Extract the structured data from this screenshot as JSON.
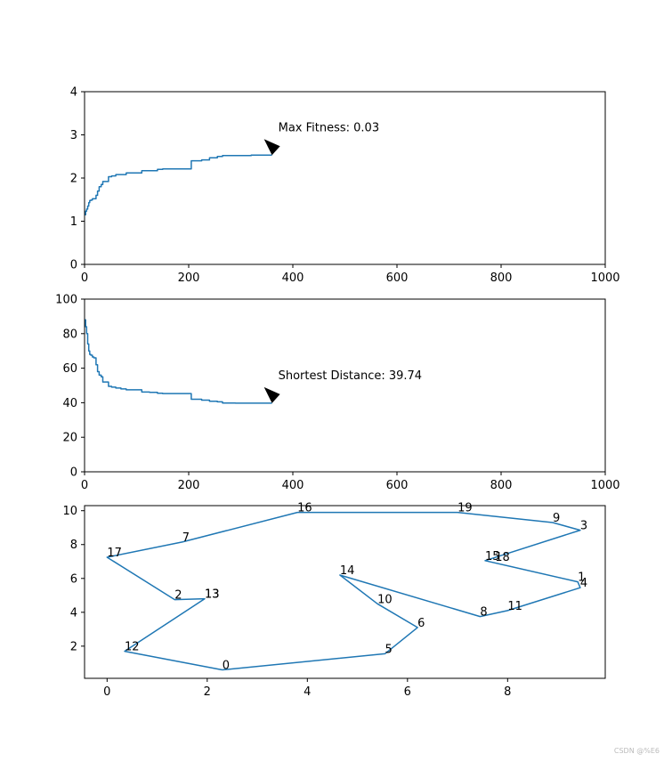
{
  "chart_data": [
    {
      "type": "line",
      "xlim": [
        0,
        1000
      ],
      "ylim": [
        0,
        4
      ],
      "xticks": [
        0,
        200,
        400,
        600,
        800,
        1000
      ],
      "yticks": [
        0,
        1,
        2,
        3,
        4
      ],
      "grid": false,
      "series": [
        {
          "color": "#1f77b4",
          "x": [
            0,
            2,
            4,
            6,
            8,
            10,
            12,
            15,
            18,
            22,
            25,
            28,
            32,
            35,
            40,
            46,
            52,
            60,
            70,
            80,
            95,
            110,
            125,
            140,
            150,
            175,
            205,
            225,
            240,
            255,
            265,
            290,
            320,
            360
          ],
          "y": [
            1.15,
            1.23,
            1.28,
            1.35,
            1.43,
            1.48,
            1.49,
            1.52,
            1.52,
            1.6,
            1.7,
            1.8,
            1.85,
            1.92,
            1.92,
            2.03,
            2.05,
            2.08,
            2.08,
            2.12,
            2.12,
            2.17,
            2.17,
            2.2,
            2.21,
            2.21,
            2.4,
            2.42,
            2.47,
            2.5,
            2.52,
            2.52,
            2.53,
            2.53
          ]
        }
      ],
      "annotation": {
        "text": "Max Fitness: 0.03",
        "x": 360,
        "y": 2.53
      }
    },
    {
      "type": "line",
      "xlim": [
        0,
        1000
      ],
      "ylim": [
        0,
        100
      ],
      "xticks": [
        0,
        200,
        400,
        600,
        800,
        1000
      ],
      "yticks": [
        0,
        20,
        40,
        60,
        80,
        100
      ],
      "grid": false,
      "series": [
        {
          "color": "#1f77b4",
          "x": [
            0,
            2,
            4,
            6,
            8,
            10,
            12,
            15,
            18,
            22,
            25,
            28,
            32,
            35,
            40,
            46,
            52,
            60,
            70,
            80,
            95,
            110,
            125,
            140,
            150,
            175,
            205,
            225,
            240,
            255,
            265,
            290,
            320,
            360
          ],
          "y": [
            88,
            84,
            80,
            74,
            70,
            68,
            67.5,
            66.5,
            66,
            62,
            58,
            56,
            55,
            52,
            52,
            49.5,
            49,
            48.5,
            48,
            47.5,
            47.5,
            46.2,
            46,
            45.5,
            45.3,
            45.3,
            42,
            41.5,
            40.8,
            40.5,
            39.8,
            39.74,
            39.74,
            39.74
          ]
        }
      ],
      "annotation": {
        "text": "Shortest Distance: 39.74",
        "x": 360,
        "y": 39.74
      }
    },
    {
      "type": "line",
      "xlim": [
        -0.45,
        9.95
      ],
      "ylim": [
        0.1,
        10.3
      ],
      "xticks": [
        0,
        2,
        4,
        6,
        8
      ],
      "yticks": [
        2,
        4,
        6,
        8,
        10
      ],
      "grid": false,
      "series": [
        {
          "color": "#1f77b4",
          "x": [
            2.3,
            0.35,
            1.95,
            1.35,
            0.0,
            1.5,
            3.8,
            7.0,
            8.9,
            9.45,
            7.55,
            9.4,
            9.45,
            8.0,
            7.45,
            4.65,
            5.4,
            6.2,
            5.55,
            2.3
          ],
          "y": [
            0.6,
            1.7,
            4.8,
            4.75,
            7.25,
            8.15,
            9.9,
            9.9,
            9.3,
            8.85,
            7.05,
            5.8,
            5.45,
            4.1,
            3.75,
            6.2,
            4.5,
            3.1,
            1.55,
            0.6
          ],
          "labels": [
            "0",
            "12",
            "13",
            "2",
            "17",
            "7",
            "16",
            "19",
            "9",
            "3",
            "15",
            "1",
            "4",
            "11",
            "8",
            "14",
            "10",
            "6",
            "5",
            "0"
          ]
        }
      ],
      "point_labels": [
        {
          "text": "0",
          "x": 2.3,
          "y": 0.6
        },
        {
          "text": "1",
          "x": 9.4,
          "y": 5.8
        },
        {
          "text": "2",
          "x": 1.35,
          "y": 4.75
        },
        {
          "text": "3",
          "x": 9.45,
          "y": 8.85
        },
        {
          "text": "4",
          "x": 9.45,
          "y": 5.45
        },
        {
          "text": "5",
          "x": 5.55,
          "y": 1.55
        },
        {
          "text": "6",
          "x": 6.2,
          "y": 3.1
        },
        {
          "text": "7",
          "x": 1.5,
          "y": 8.15
        },
        {
          "text": "8",
          "x": 7.45,
          "y": 3.75
        },
        {
          "text": "9",
          "x": 8.9,
          "y": 9.3
        },
        {
          "text": "10",
          "x": 5.4,
          "y": 4.5
        },
        {
          "text": "11",
          "x": 8.0,
          "y": 4.1
        },
        {
          "text": "12",
          "x": 0.35,
          "y": 1.7
        },
        {
          "text": "13",
          "x": 1.95,
          "y": 4.8
        },
        {
          "text": "13",
          "x": 1.95,
          "y": 4.8
        },
        {
          "text": "14",
          "x": 4.65,
          "y": 6.2
        },
        {
          "text": "15",
          "x": 7.55,
          "y": 7.05
        },
        {
          "text": "16",
          "x": 3.8,
          "y": 9.9
        },
        {
          "text": "17",
          "x": 0.0,
          "y": 7.25
        },
        {
          "text": "18",
          "x": 7.75,
          "y": 7.0
        },
        {
          "text": "19",
          "x": 7.0,
          "y": 9.9
        }
      ]
    }
  ],
  "watermark": "CSDN @%E6"
}
